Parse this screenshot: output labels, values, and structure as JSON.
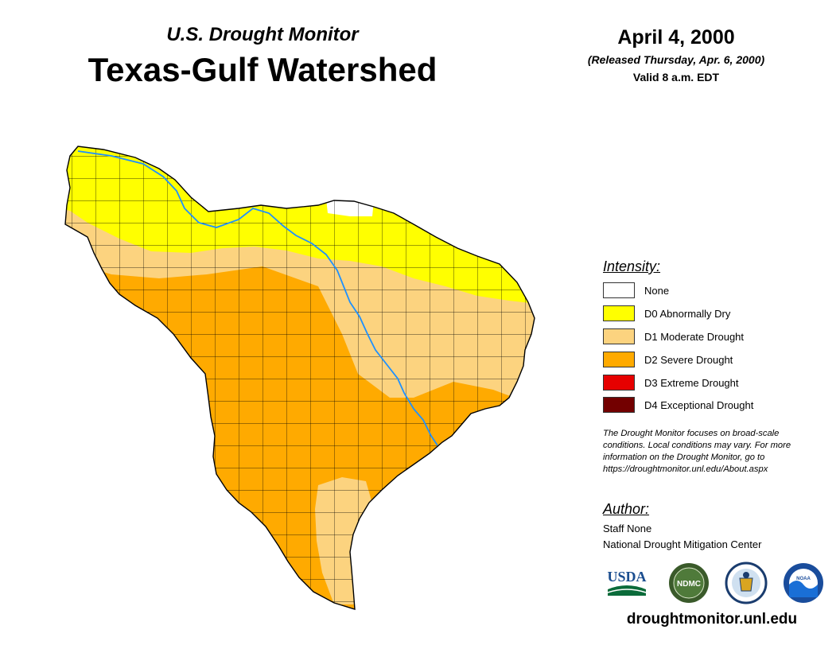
{
  "header": {
    "subtitle": "U.S. Drought Monitor",
    "title": "Texas-Gulf Watershed"
  },
  "date": {
    "main": "April 4, 2000",
    "released": "(Released Thursday, Apr. 6, 2000)",
    "valid": "Valid 8 a.m. EDT"
  },
  "legend": {
    "heading": "Intensity:",
    "items": [
      {
        "label": "None",
        "color": "#ffffff"
      },
      {
        "label": "D0 Abnormally Dry",
        "color": "#ffff00"
      },
      {
        "label": "D1 Moderate Drought",
        "color": "#fcd37f"
      },
      {
        "label": "D2 Severe Drought",
        "color": "#ffaa00"
      },
      {
        "label": "D3 Extreme Drought",
        "color": "#e60000"
      },
      {
        "label": "D4 Exceptional Drought",
        "color": "#730000"
      }
    ]
  },
  "disclaimer": {
    "line1": "The Drought Monitor focuses on broad-scale",
    "line2": "conditions. Local conditions may vary. For more",
    "line3": "information on the Drought Monitor, go to",
    "line4": "https://droughtmonitor.unl.edu/About.aspx"
  },
  "author": {
    "heading": "Author:",
    "name": "Staff None",
    "org": "National Drought Mitigation Center"
  },
  "logos": {
    "usda": "USDA",
    "ndmc": "NDMC",
    "doc": "DOC",
    "noaa": "NOAA"
  },
  "website": "droughtmonitor.unl.edu"
}
